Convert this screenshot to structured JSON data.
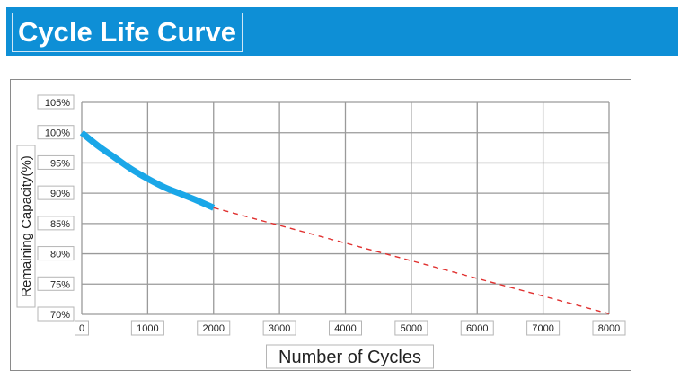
{
  "header": {
    "title": "Cycle Life Curve"
  },
  "colors": {
    "banner": "#0e8fd6",
    "measured": "#1aa7e8",
    "projected": "#e0302f",
    "grid": "#9a9a9a"
  },
  "chart_data": {
    "type": "line",
    "title": "Cycle Life Curve",
    "xlabel": "Number of Cycles",
    "ylabel": "Remaining Capacity(%)",
    "xlim": [
      0,
      8000
    ],
    "ylim": [
      70,
      105
    ],
    "x_ticks": [
      0,
      1000,
      2000,
      3000,
      4000,
      5000,
      6000,
      7000,
      8000
    ],
    "y_ticks": [
      70,
      75,
      80,
      85,
      90,
      95,
      100,
      105
    ],
    "x_tick_labels": [
      "0",
      "1000",
      "2000",
      "3000",
      "4000",
      "5000",
      "6000",
      "7000",
      "8000"
    ],
    "y_tick_labels": [
      "70%",
      "75%",
      "80%",
      "85%",
      "90%",
      "95%",
      "100%",
      "105%"
    ],
    "grid": true,
    "legend": "none",
    "series": [
      {
        "style": "solid",
        "color": "#1aa7e8",
        "x": [
          0,
          250,
          500,
          750,
          1000,
          1250,
          1500,
          1750,
          2000
        ],
        "y": [
          100,
          97.8,
          95.9,
          94.0,
          92.4,
          91.0,
          89.9,
          88.8,
          87.6
        ]
      },
      {
        "style": "dashed",
        "color": "#e0302f",
        "x": [
          2000,
          8000
        ],
        "y": [
          87.6,
          70.1
        ]
      }
    ]
  }
}
